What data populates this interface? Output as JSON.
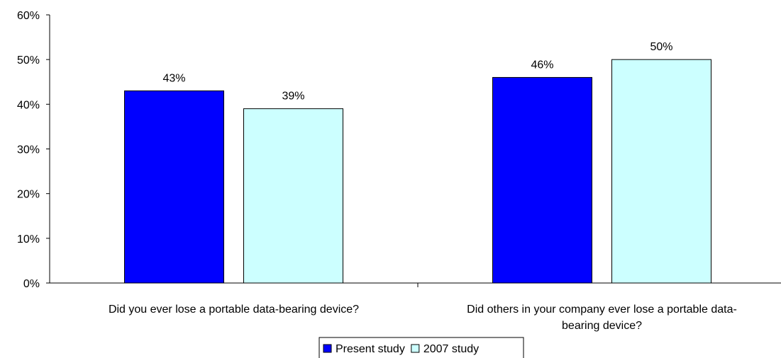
{
  "chart_data": {
    "type": "bar",
    "categories": [
      "Did you ever lose a portable data-bearing device?",
      "Did others in your company ever lose a portable data-bearing device?"
    ],
    "category_lines": [
      [
        "Did you ever lose a portable data-bearing device?"
      ],
      [
        "Did others in your company ever lose a portable data-",
        "bearing device?"
      ]
    ],
    "series": [
      {
        "name": "Present study",
        "values": [
          43,
          46
        ],
        "labels": [
          "43%",
          "46%"
        ],
        "color": "#0000ff"
      },
      {
        "name": "2007 study",
        "values": [
          39,
          50
        ],
        "labels": [
          "39%",
          "50%"
        ],
        "color": "#ccffff"
      }
    ],
    "y_ticks": [
      {
        "value": 0,
        "label": "0%"
      },
      {
        "value": 10,
        "label": "10%"
      },
      {
        "value": 20,
        "label": "20%"
      },
      {
        "value": 30,
        "label": "30%"
      },
      {
        "value": 40,
        "label": "40%"
      },
      {
        "value": 50,
        "label": "50%"
      },
      {
        "value": 60,
        "label": "60%"
      }
    ],
    "ylim": [
      0,
      60
    ],
    "grid": false,
    "legend_position": "bottom-center",
    "title": "",
    "xlabel": "",
    "ylabel": ""
  }
}
